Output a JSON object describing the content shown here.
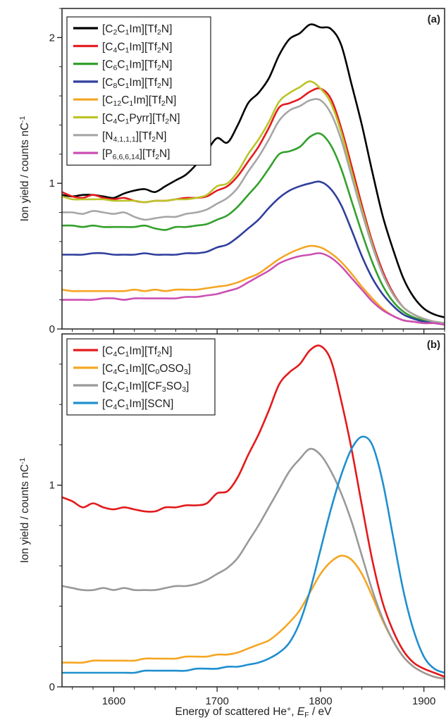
{
  "chart_data": [
    {
      "type": "line",
      "panel_label": "(a)",
      "ylabel": "Ion yield / counts nC⁻¹",
      "xlim": [
        1550,
        1920
      ],
      "ylim": [
        0,
        2.2
      ],
      "yticks": [
        "0",
        "1",
        "2"
      ],
      "ytick_values": [
        0,
        1,
        2
      ],
      "legend_position": "top-left",
      "grid": false,
      "x": [
        1550,
        1560,
        1570,
        1580,
        1590,
        1600,
        1610,
        1620,
        1630,
        1640,
        1650,
        1660,
        1670,
        1680,
        1690,
        1700,
        1710,
        1720,
        1730,
        1740,
        1750,
        1760,
        1770,
        1780,
        1790,
        1800,
        1810,
        1820,
        1830,
        1840,
        1850,
        1860,
        1870,
        1880,
        1890,
        1900,
        1910,
        1920
      ],
      "series": [
        {
          "name": "[C2C1Im][Tf2N]",
          "legend": [
            [
              "[C",
              ""
            ],
            [
              "2",
              "sub"
            ],
            [
              "C",
              ""
            ],
            [
              "1",
              "sub"
            ],
            [
              "Im][Tf",
              ""
            ],
            [
              "2",
              "sub"
            ],
            [
              "N]",
              ""
            ]
          ],
          "color": "#000000",
          "values": [
            0.92,
            0.91,
            0.92,
            0.92,
            0.91,
            0.9,
            0.93,
            0.95,
            0.96,
            0.94,
            0.98,
            1.02,
            1.06,
            1.13,
            1.22,
            1.31,
            1.28,
            1.4,
            1.55,
            1.62,
            1.72,
            1.88,
            1.99,
            2.03,
            2.09,
            2.07,
            2.06,
            1.95,
            1.68,
            1.4,
            1.08,
            0.78,
            0.55,
            0.35,
            0.22,
            0.14,
            0.1,
            0.08
          ]
        },
        {
          "name": "[C4C1Im][Tf2N]",
          "legend": [
            [
              "[C",
              ""
            ],
            [
              "4",
              "sub"
            ],
            [
              "C",
              ""
            ],
            [
              "1",
              "sub"
            ],
            [
              "Im][Tf",
              ""
            ],
            [
              "2",
              "sub"
            ],
            [
              "N]",
              ""
            ]
          ],
          "color": "#e31a1c",
          "values": [
            0.94,
            0.91,
            0.9,
            0.92,
            0.9,
            0.89,
            0.9,
            0.88,
            0.87,
            0.88,
            0.88,
            0.89,
            0.9,
            0.9,
            0.91,
            0.95,
            0.98,
            1.05,
            1.15,
            1.25,
            1.38,
            1.52,
            1.55,
            1.58,
            1.63,
            1.65,
            1.58,
            1.38,
            1.12,
            0.85,
            0.6,
            0.4,
            0.25,
            0.15,
            0.1,
            0.07,
            0.05,
            0.04
          ]
        },
        {
          "name": "[C6C1Im][Tf2N]",
          "legend": [
            [
              "[C",
              ""
            ],
            [
              "6",
              "sub"
            ],
            [
              "C",
              ""
            ],
            [
              "1",
              "sub"
            ],
            [
              "Im][Tf",
              ""
            ],
            [
              "2",
              "sub"
            ],
            [
              "N]",
              ""
            ]
          ],
          "color": "#33a02c",
          "values": [
            0.71,
            0.71,
            0.7,
            0.71,
            0.7,
            0.7,
            0.7,
            0.7,
            0.71,
            0.69,
            0.68,
            0.7,
            0.7,
            0.71,
            0.72,
            0.75,
            0.78,
            0.84,
            0.92,
            1.0,
            1.1,
            1.2,
            1.22,
            1.25,
            1.32,
            1.34,
            1.26,
            1.1,
            0.88,
            0.66,
            0.46,
            0.3,
            0.19,
            0.12,
            0.08,
            0.06,
            0.05,
            0.04
          ]
        },
        {
          "name": "[C8C1Im][Tf2N]",
          "legend": [
            [
              "[C",
              ""
            ],
            [
              "8",
              "sub"
            ],
            [
              "C",
              ""
            ],
            [
              "1",
              "sub"
            ],
            [
              "Im][Tf",
              ""
            ],
            [
              "2",
              "sub"
            ],
            [
              "N]",
              ""
            ]
          ],
          "color": "#2f3f9e",
          "values": [
            0.51,
            0.51,
            0.51,
            0.52,
            0.52,
            0.51,
            0.51,
            0.51,
            0.52,
            0.51,
            0.51,
            0.51,
            0.52,
            0.52,
            0.53,
            0.56,
            0.58,
            0.63,
            0.69,
            0.75,
            0.83,
            0.9,
            0.95,
            0.98,
            1.0,
            1.01,
            0.96,
            0.85,
            0.68,
            0.5,
            0.35,
            0.24,
            0.16,
            0.1,
            0.07,
            0.05,
            0.04,
            0.03
          ]
        },
        {
          "name": "[C12C1Im][Tf2N]",
          "legend": [
            [
              "[C",
              ""
            ],
            [
              "12",
              "sub"
            ],
            [
              "C",
              ""
            ],
            [
              "1",
              "sub"
            ],
            [
              "Im][Tf",
              ""
            ],
            [
              "2",
              "sub"
            ],
            [
              "N]",
              ""
            ]
          ],
          "color": "#f5a623",
          "values": [
            0.27,
            0.26,
            0.26,
            0.26,
            0.26,
            0.26,
            0.26,
            0.27,
            0.26,
            0.27,
            0.26,
            0.27,
            0.27,
            0.27,
            0.28,
            0.29,
            0.3,
            0.32,
            0.35,
            0.38,
            0.43,
            0.48,
            0.52,
            0.55,
            0.57,
            0.56,
            0.52,
            0.46,
            0.38,
            0.29,
            0.21,
            0.14,
            0.09,
            0.06,
            0.05,
            0.04,
            0.04,
            0.04
          ]
        },
        {
          "name": "[C4C1Pyrr][Tf2N]",
          "legend": [
            [
              "[C",
              ""
            ],
            [
              "4",
              "sub"
            ],
            [
              "C",
              ""
            ],
            [
              "1",
              "sub"
            ],
            [
              "Pyrr][Tf",
              ""
            ],
            [
              "2",
              "sub"
            ],
            [
              "N]",
              ""
            ]
          ],
          "color": "#bcc42a",
          "values": [
            0.91,
            0.89,
            0.89,
            0.89,
            0.89,
            0.88,
            0.88,
            0.88,
            0.87,
            0.88,
            0.88,
            0.89,
            0.89,
            0.9,
            0.92,
            0.98,
            1.0,
            1.08,
            1.2,
            1.3,
            1.42,
            1.56,
            1.62,
            1.66,
            1.7,
            1.65,
            1.55,
            1.35,
            1.08,
            0.82,
            0.58,
            0.38,
            0.24,
            0.15,
            0.1,
            0.07,
            0.05,
            0.04
          ]
        },
        {
          "name": "[N4,1,1,1][Tf2N]",
          "legend": [
            [
              "[N",
              ""
            ],
            [
              "4,1,1,1",
              "sub"
            ],
            [
              "][Tf",
              ""
            ],
            [
              "2",
              "sub"
            ],
            [
              "N]",
              ""
            ]
          ],
          "color": "#a6a6a6",
          "values": [
            0.8,
            0.8,
            0.79,
            0.81,
            0.8,
            0.79,
            0.8,
            0.77,
            0.75,
            0.76,
            0.77,
            0.77,
            0.79,
            0.8,
            0.82,
            0.86,
            0.9,
            0.97,
            1.08,
            1.18,
            1.3,
            1.43,
            1.5,
            1.53,
            1.57,
            1.57,
            1.48,
            1.3,
            1.05,
            0.8,
            0.57,
            0.38,
            0.24,
            0.15,
            0.1,
            0.07,
            0.05,
            0.04
          ]
        },
        {
          "name": "[P6,6,6,14][Tf2N]",
          "legend": [
            [
              "[P",
              ""
            ],
            [
              "6,6,6,14",
              "sub"
            ],
            [
              "][Tf",
              ""
            ],
            [
              "2",
              "sub"
            ],
            [
              "N]",
              ""
            ]
          ],
          "color": "#cc4fb3",
          "values": [
            0.2,
            0.2,
            0.2,
            0.2,
            0.21,
            0.21,
            0.2,
            0.21,
            0.21,
            0.21,
            0.21,
            0.21,
            0.22,
            0.22,
            0.23,
            0.24,
            0.26,
            0.28,
            0.32,
            0.36,
            0.4,
            0.45,
            0.48,
            0.5,
            0.51,
            0.52,
            0.49,
            0.43,
            0.35,
            0.27,
            0.19,
            0.13,
            0.09,
            0.06,
            0.05,
            0.04,
            0.04,
            0.03
          ]
        }
      ]
    },
    {
      "type": "line",
      "panel_label": "(b)",
      "ylabel": "Ion yield / counts nC⁻¹",
      "xlabel": "Energy of scattered He⁺, E_F / eV",
      "xlabel_parts": [
        [
          "Energy of scattered He",
          ""
        ],
        [
          "+",
          "sup"
        ],
        [
          ", ",
          ""
        ],
        [
          "E",
          "italic"
        ],
        [
          "F",
          "sub"
        ],
        [
          " / eV",
          ""
        ]
      ],
      "xlim": [
        1550,
        1920
      ],
      "ylim": [
        0,
        1.75
      ],
      "xticks": [
        "1600",
        "1700",
        "1800",
        "1900"
      ],
      "xtick_values": [
        1600,
        1700,
        1800,
        1900
      ],
      "yticks": [
        "0",
        "1"
      ],
      "ytick_values": [
        0,
        1
      ],
      "legend_position": "top-left",
      "grid": false,
      "x": [
        1550,
        1560,
        1570,
        1580,
        1590,
        1600,
        1610,
        1620,
        1630,
        1640,
        1650,
        1660,
        1670,
        1680,
        1690,
        1700,
        1710,
        1720,
        1730,
        1740,
        1750,
        1760,
        1770,
        1780,
        1790,
        1800,
        1810,
        1820,
        1830,
        1840,
        1850,
        1860,
        1870,
        1880,
        1890,
        1900,
        1910,
        1920
      ],
      "series": [
        {
          "name": "[C4C1Im][Tf2N]",
          "legend": [
            [
              "[C",
              ""
            ],
            [
              "4",
              "sub"
            ],
            [
              "C",
              ""
            ],
            [
              "1",
              "sub"
            ],
            [
              "Im][Tf",
              ""
            ],
            [
              "2",
              "sub"
            ],
            [
              "N]",
              ""
            ]
          ],
          "color": "#e31a1c",
          "values": [
            0.94,
            0.92,
            0.89,
            0.91,
            0.89,
            0.88,
            0.89,
            0.88,
            0.87,
            0.87,
            0.89,
            0.89,
            0.9,
            0.9,
            0.91,
            0.96,
            0.97,
            1.04,
            1.15,
            1.25,
            1.37,
            1.5,
            1.56,
            1.6,
            1.67,
            1.69,
            1.62,
            1.42,
            1.18,
            0.9,
            0.63,
            0.42,
            0.28,
            0.18,
            0.12,
            0.09,
            0.07,
            0.05
          ]
        },
        {
          "name": "[C4C1Im][C0OSO3]",
          "legend": [
            [
              "[C",
              ""
            ],
            [
              "4",
              "sub"
            ],
            [
              "C",
              ""
            ],
            [
              "1",
              "sub"
            ],
            [
              "Im][C",
              ""
            ],
            [
              "0",
              "sub"
            ],
            [
              "OSO",
              ""
            ],
            [
              "3",
              "sub"
            ],
            [
              "]",
              ""
            ]
          ],
          "color": "#f5a623",
          "values": [
            0.12,
            0.12,
            0.12,
            0.13,
            0.13,
            0.13,
            0.13,
            0.13,
            0.14,
            0.14,
            0.14,
            0.14,
            0.15,
            0.15,
            0.15,
            0.16,
            0.16,
            0.17,
            0.19,
            0.21,
            0.23,
            0.27,
            0.32,
            0.38,
            0.47,
            0.56,
            0.62,
            0.65,
            0.63,
            0.56,
            0.45,
            0.33,
            0.23,
            0.15,
            0.1,
            0.07,
            0.05,
            0.04
          ]
        },
        {
          "name": "[C4C1Im][CF3SO3]",
          "legend": [
            [
              "[C",
              ""
            ],
            [
              "4",
              "sub"
            ],
            [
              "C",
              ""
            ],
            [
              "1",
              "sub"
            ],
            [
              "Im][CF",
              ""
            ],
            [
              "3",
              "sub"
            ],
            [
              "SO",
              ""
            ],
            [
              "3",
              "sub"
            ],
            [
              "]",
              ""
            ]
          ],
          "color": "#999999",
          "values": [
            0.5,
            0.49,
            0.48,
            0.48,
            0.49,
            0.48,
            0.49,
            0.48,
            0.48,
            0.48,
            0.49,
            0.5,
            0.5,
            0.51,
            0.53,
            0.56,
            0.59,
            0.64,
            0.72,
            0.8,
            0.89,
            0.98,
            1.07,
            1.13,
            1.18,
            1.15,
            1.07,
            0.96,
            0.82,
            0.65,
            0.48,
            0.34,
            0.23,
            0.15,
            0.1,
            0.07,
            0.05,
            0.04
          ]
        },
        {
          "name": "[C4C1Im][SCN]",
          "legend": [
            [
              "[C",
              ""
            ],
            [
              "4",
              "sub"
            ],
            [
              "C",
              ""
            ],
            [
              "1",
              "sub"
            ],
            [
              "Im][SCN]",
              ""
            ]
          ],
          "color": "#1f8fcf",
          "values": [
            0.07,
            0.07,
            0.07,
            0.07,
            0.07,
            0.07,
            0.07,
            0.07,
            0.08,
            0.08,
            0.08,
            0.08,
            0.08,
            0.09,
            0.09,
            0.09,
            0.1,
            0.1,
            0.11,
            0.12,
            0.14,
            0.17,
            0.22,
            0.32,
            0.48,
            0.68,
            0.88,
            1.05,
            1.18,
            1.24,
            1.2,
            1.02,
            0.75,
            0.48,
            0.28,
            0.15,
            0.09,
            0.07
          ]
        }
      ]
    }
  ]
}
